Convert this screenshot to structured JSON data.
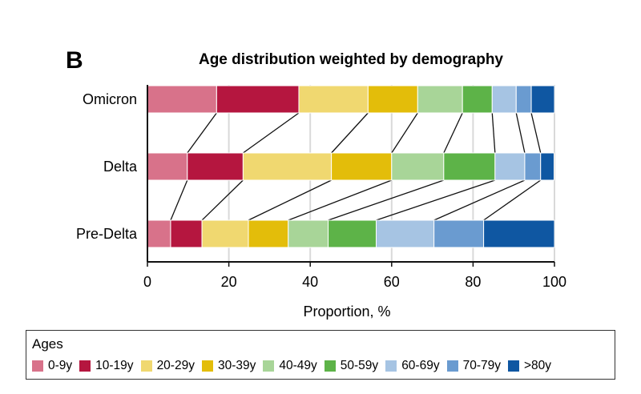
{
  "panel_letter": "B",
  "chart_data": {
    "type": "bar",
    "orientation": "horizontal",
    "stacked": true,
    "title": "Age distribution weighted by demography",
    "xlabel": "Proportion, %",
    "ylabel": "",
    "xlim": [
      0,
      100
    ],
    "xticks": [
      "0",
      "20",
      "40",
      "60",
      "80",
      "100"
    ],
    "grid": "vertical",
    "categories": [
      "Omicron",
      "Delta",
      "Pre-Delta"
    ],
    "series": [
      {
        "name": "0-9y",
        "color": "#d8728a",
        "values": [
          17.0,
          9.8,
          5.7
        ]
      },
      {
        "name": "10-19y",
        "color": "#b5163f",
        "values": [
          20.2,
          13.7,
          7.7
        ]
      },
      {
        "name": "20-29y",
        "color": "#f0d870",
        "values": [
          17.0,
          21.7,
          11.4
        ]
      },
      {
        "name": "30-39y",
        "color": "#e3bd0a",
        "values": [
          12.2,
          14.8,
          9.8
        ]
      },
      {
        "name": "40-49y",
        "color": "#a8d598",
        "values": [
          11.0,
          12.8,
          9.8
        ]
      },
      {
        "name": "50-59y",
        "color": "#5db348",
        "values": [
          7.3,
          12.6,
          11.8
        ]
      },
      {
        "name": "60-69y",
        "color": "#a6c4e3",
        "values": [
          5.9,
          7.3,
          14.2
        ]
      },
      {
        "name": "70-79y",
        "color": "#6a9bd0",
        "values": [
          3.7,
          3.9,
          12.2
        ]
      },
      {
        "name": ">80y",
        "color": "#0f57a2",
        "values": [
          5.7,
          3.3,
          17.4
        ]
      }
    ],
    "legend": {
      "title": "Ages",
      "placement": "bottom"
    }
  }
}
